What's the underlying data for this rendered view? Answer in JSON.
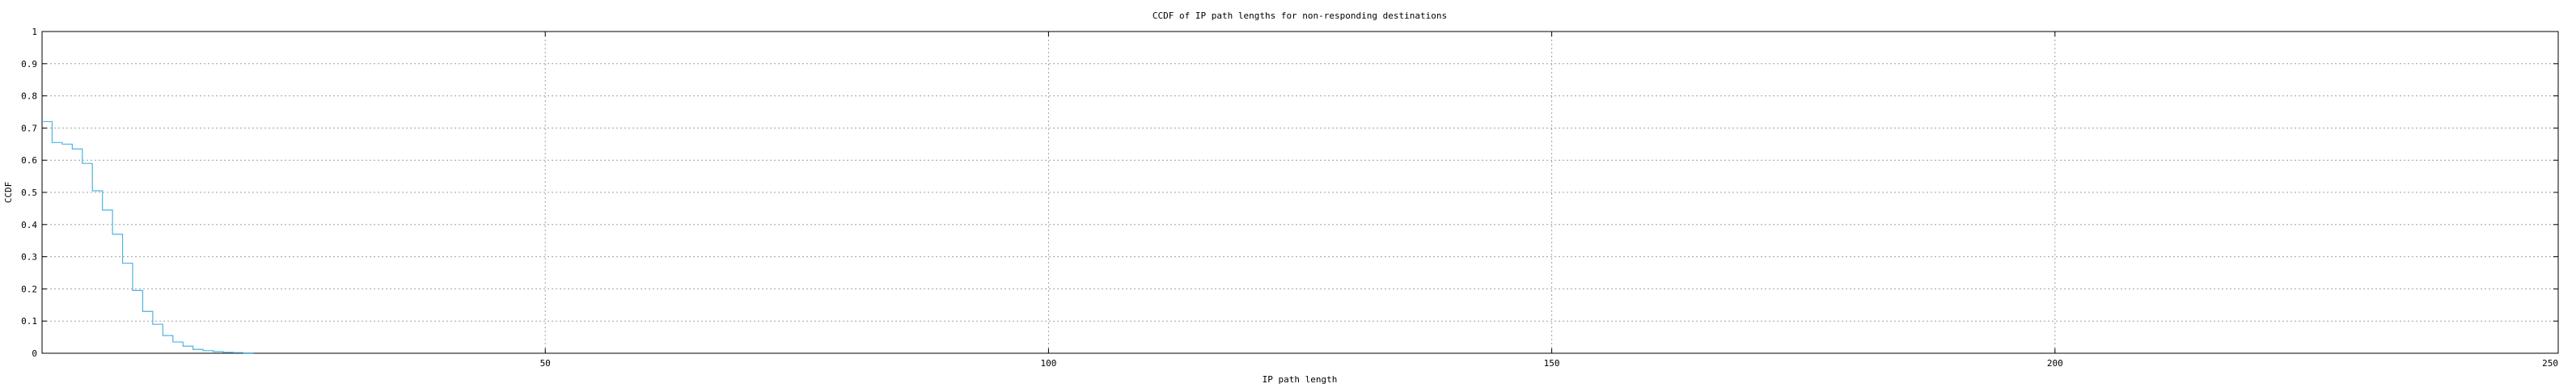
{
  "chart_data": {
    "type": "line",
    "title": "CCDF of IP path lengths for non-responding destinations",
    "xlabel": "IP path length",
    "ylabel": "CCDF",
    "xlim": [
      0,
      250
    ],
    "ylim": [
      0,
      1
    ],
    "xticks": [
      50,
      100,
      150,
      200,
      250
    ],
    "xtick_labels": [
      "50",
      "100",
      "150",
      "200",
      "250"
    ],
    "yticks": [
      0,
      0.1,
      0.2,
      0.3,
      0.4,
      0.5,
      0.6,
      0.7,
      0.8,
      0.9,
      1
    ],
    "ytick_labels": [
      "0",
      "0.1",
      "0.2",
      "0.3",
      "0.4",
      "0.5",
      "0.6",
      "0.7",
      "0.8",
      "0.9",
      "1"
    ],
    "grid": true,
    "line_color": "#4fb3e0",
    "series": [
      {
        "step": "post",
        "x": [
          0,
          1,
          2,
          3,
          4,
          5,
          6,
          7,
          8,
          9,
          10,
          11,
          12,
          13,
          14,
          15,
          16,
          17,
          18,
          19,
          20,
          21
        ],
        "y": [
          0.72,
          0.655,
          0.65,
          0.635,
          0.59,
          0.505,
          0.445,
          0.37,
          0.28,
          0.195,
          0.13,
          0.09,
          0.055,
          0.035,
          0.022,
          0.012,
          0.008,
          0.005,
          0.003,
          0.002,
          0.001,
          0.0
        ]
      }
    ]
  }
}
